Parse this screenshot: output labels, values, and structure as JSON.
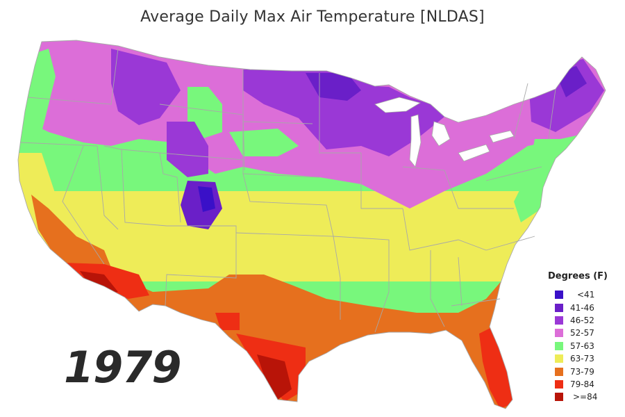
{
  "title": "Average Daily Max Air Temperature [NLDAS]",
  "year": "1979",
  "legend": {
    "title": "Degrees (F)",
    "bins": [
      {
        "label": "<41",
        "color": "#3a10c8"
      },
      {
        "label": "41-46",
        "color": "#6a1fc8"
      },
      {
        "label": "46-52",
        "color": "#9a38d6"
      },
      {
        "label": "52-57",
        "color": "#dc6ed8"
      },
      {
        "label": "57-63",
        "color": "#78f77c"
      },
      {
        "label": "63-73",
        "color": "#eeec58"
      },
      {
        "label": "73-79",
        "color": "#e6701e"
      },
      {
        "label": "79-84",
        "color": "#ee2e14"
      },
      {
        "label": ">=84",
        "color": "#b81408"
      }
    ]
  }
}
